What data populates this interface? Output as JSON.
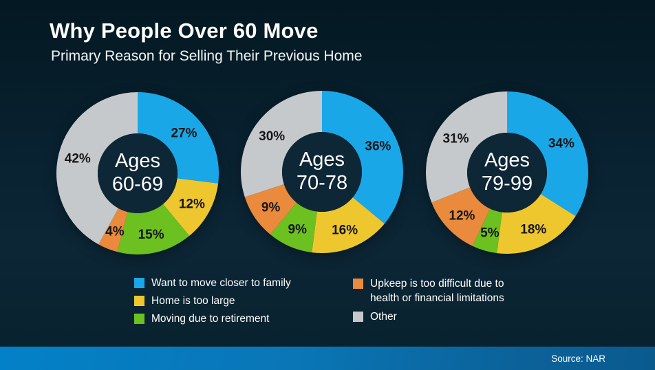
{
  "header": {
    "title": "Why People Over 60 Move",
    "subtitle": "Primary Reason for Selling Their Previous Home"
  },
  "footer": {
    "source": "Source: NAR"
  },
  "colors": {
    "background_top": "#031821",
    "background_mid": "#0c2636",
    "hole": "#0e2736",
    "percent_label": "#161616",
    "text": "#ffffff",
    "bar_left": "#0381c8",
    "bar_right": "#0a5a8e"
  },
  "legend": {
    "items": [
      {
        "label": "Want to move closer to family",
        "color": "#1aa7e8"
      },
      {
        "label": "Home is too large",
        "color": "#eec72f"
      },
      {
        "label": "Moving due to retirement",
        "color": "#6cc120"
      },
      {
        "label": "Upkeep is too difficult due to\nhealth or financial limitations",
        "color": "#e98a3c"
      },
      {
        "label": "Other",
        "color": "#c6c9cc"
      }
    ]
  },
  "chart_data": [
    {
      "type": "pie",
      "subtype": "donut",
      "title": "Ages 60-69",
      "center_lines": [
        "Ages",
        "60-69"
      ],
      "categories": [
        "Want to move closer to family",
        "Home is too large",
        "Moving due to retirement",
        "Upkeep is too difficult due to health or financial limitations",
        "Other"
      ],
      "values": [
        27,
        12,
        15,
        4,
        42
      ],
      "unit": "%",
      "start_angle": "12-o-clock",
      "direction": "clockwise"
    },
    {
      "type": "pie",
      "subtype": "donut",
      "title": "Ages 70-78",
      "center_lines": [
        "Ages",
        "70-78"
      ],
      "categories": [
        "Want to move closer to family",
        "Home is too large",
        "Moving due to retirement",
        "Upkeep is too difficult due to health or financial limitations",
        "Other"
      ],
      "values": [
        36,
        16,
        9,
        9,
        30
      ],
      "unit": "%",
      "start_angle": "12-o-clock",
      "direction": "clockwise"
    },
    {
      "type": "pie",
      "subtype": "donut",
      "title": "Ages 79-99",
      "center_lines": [
        "Ages",
        "79-99"
      ],
      "categories": [
        "Want to move closer to family",
        "Home is too large",
        "Moving due to retirement",
        "Upkeep is too difficult due to health or financial limitations",
        "Other"
      ],
      "values": [
        34,
        18,
        5,
        12,
        31
      ],
      "unit": "%",
      "start_angle": "12-o-clock",
      "direction": "clockwise"
    }
  ]
}
